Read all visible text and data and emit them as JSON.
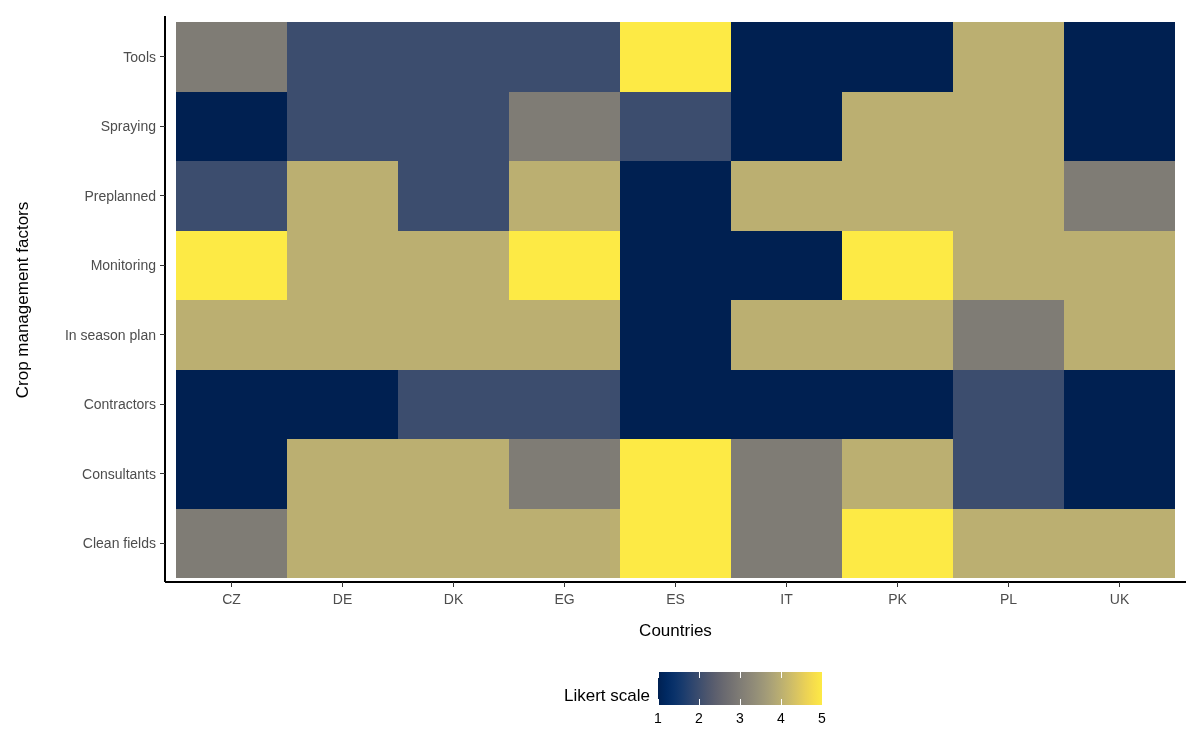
{
  "chart_data": {
    "type": "heatmap",
    "xlabel": "Countries",
    "ylabel": "Crop management factors",
    "legend_title": "Likert scale",
    "categories": [
      "CZ",
      "DE",
      "DK",
      "EG",
      "ES",
      "IT",
      "PK",
      "PL",
      "UK"
    ],
    "y_categories": [
      "Tools",
      "Spraying",
      "Preplanned",
      "Monitoring",
      "In season plan",
      "Contractors",
      "Consultants",
      "Clean fields"
    ],
    "cells": [
      [
        3,
        2,
        2,
        2,
        5,
        1,
        1,
        4,
        1
      ],
      [
        1,
        2,
        2,
        3,
        2,
        1,
        4,
        4,
        1
      ],
      [
        2,
        4,
        2,
        4,
        1,
        4,
        4,
        4,
        3
      ],
      [
        5,
        4,
        4,
        5,
        1,
        1,
        5,
        4,
        4
      ],
      [
        4,
        4,
        4,
        4,
        1,
        4,
        4,
        3,
        4
      ],
      [
        1,
        1,
        2,
        2,
        1,
        1,
        1,
        2,
        1
      ],
      [
        1,
        4,
        4,
        3,
        5,
        3,
        4,
        2,
        1
      ],
      [
        3,
        4,
        4,
        4,
        5,
        3,
        5,
        4,
        4
      ]
    ],
    "clim": [
      1,
      5
    ],
    "cticks": [
      1,
      2,
      3,
      4,
      5
    ]
  }
}
